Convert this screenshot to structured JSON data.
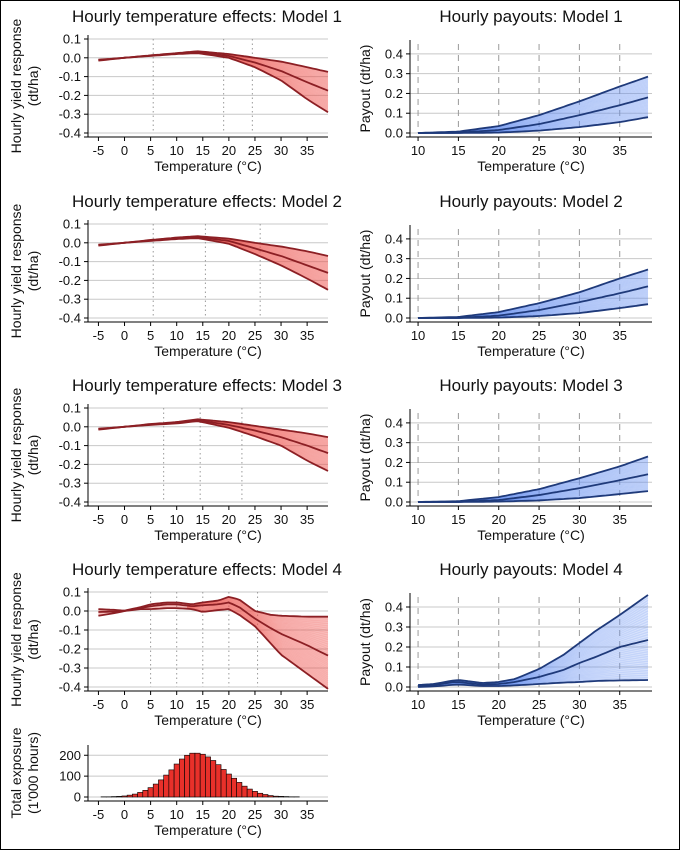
{
  "chart_data": [
    {
      "type": "line",
      "title": "Hourly temperature effects: Model 1",
      "xlabel": "Temperature (°C)",
      "ylabel": "Hourly yield response (dt/ha)",
      "xlim": [
        -7,
        39
      ],
      "ylim": [
        -0.4,
        0.1
      ],
      "xticks": [
        -5,
        0,
        5,
        10,
        15,
        20,
        25,
        30,
        35
      ],
      "yticks": [
        -0.4,
        -0.3,
        -0.2,
        -0.1,
        0.0,
        0.1
      ],
      "ytick_labels": [
        "-0.4",
        "-0.3",
        "-0.2",
        "-0.1",
        "0.0",
        "0.1"
      ],
      "knots": [
        5.5,
        19,
        24.5
      ],
      "x": [
        -5,
        0,
        5,
        10,
        14,
        20,
        25,
        30,
        35,
        39
      ],
      "series": [
        {
          "role": "upper",
          "values": [
            -0.01,
            0.0,
            0.013,
            0.025,
            0.035,
            0.02,
            0.0,
            -0.02,
            -0.05,
            -0.075
          ]
        },
        {
          "role": "median",
          "values": [
            -0.012,
            0.0,
            0.012,
            0.022,
            0.03,
            0.01,
            -0.025,
            -0.07,
            -0.13,
            -0.175
          ]
        },
        {
          "role": "lower",
          "values": [
            -0.015,
            0.0,
            0.01,
            0.02,
            0.025,
            0.0,
            -0.05,
            -0.12,
            -0.22,
            -0.29
          ]
        }
      ],
      "grid": true,
      "color": "#e8302a"
    },
    {
      "type": "line",
      "title": "Hourly payouts: Model 1",
      "xlabel": "Temperature (°C)",
      "ylabel": "Payout (dt/ha)",
      "xlim": [
        9,
        39
      ],
      "ylim": [
        0,
        0.45
      ],
      "xticks": [
        10,
        15,
        20,
        25,
        30,
        35
      ],
      "yticks": [
        0.0,
        0.1,
        0.2,
        0.3,
        0.4
      ],
      "ytick_labels": [
        "0.0",
        "0.1",
        "0.2",
        "0.3",
        "0.4"
      ],
      "x": [
        10,
        15,
        20,
        25,
        30,
        35,
        38.5
      ],
      "series": [
        {
          "role": "upper",
          "values": [
            0,
            0.007,
            0.035,
            0.09,
            0.16,
            0.235,
            0.285
          ]
        },
        {
          "role": "median",
          "values": [
            0,
            0.002,
            0.015,
            0.045,
            0.09,
            0.14,
            0.18
          ]
        },
        {
          "role": "lower",
          "values": [
            0,
            0.0,
            0.002,
            0.012,
            0.03,
            0.055,
            0.08
          ]
        }
      ],
      "grid": true,
      "color": "#2a5fd8"
    },
    {
      "type": "line",
      "title": "Hourly temperature effects: Model 2",
      "xlabel": "Temperature (°C)",
      "ylabel": "Hourly yield response (dt/ha)",
      "xlim": [
        -7,
        39
      ],
      "ylim": [
        -0.4,
        0.1
      ],
      "xticks": [
        -5,
        0,
        5,
        10,
        15,
        20,
        25,
        30,
        35
      ],
      "yticks": [
        -0.4,
        -0.3,
        -0.2,
        -0.1,
        0.0,
        0.1
      ],
      "ytick_labels": [
        "-0.4",
        "-0.3",
        "-0.2",
        "-0.1",
        "0.0",
        "0.1"
      ],
      "knots": [
        5.5,
        15.5,
        26
      ],
      "x": [
        -5,
        0,
        5,
        10,
        14,
        20,
        25,
        30,
        35,
        39
      ],
      "series": [
        {
          "role": "upper",
          "values": [
            -0.01,
            0.0,
            0.015,
            0.028,
            0.035,
            0.022,
            0.0,
            -0.02,
            -0.045,
            -0.07
          ]
        },
        {
          "role": "median",
          "values": [
            -0.012,
            0.0,
            0.013,
            0.025,
            0.03,
            0.01,
            -0.03,
            -0.07,
            -0.12,
            -0.16
          ]
        },
        {
          "role": "lower",
          "values": [
            -0.015,
            0.0,
            0.01,
            0.02,
            0.025,
            -0.005,
            -0.06,
            -0.12,
            -0.19,
            -0.25
          ]
        }
      ],
      "grid": true,
      "color": "#e8302a"
    },
    {
      "type": "line",
      "title": "Hourly payouts: Model 2",
      "xlabel": "Temperature (°C)",
      "ylabel": "Payout (dt/ha)",
      "xlim": [
        9,
        39
      ],
      "ylim": [
        0,
        0.45
      ],
      "xticks": [
        10,
        15,
        20,
        25,
        30,
        35
      ],
      "yticks": [
        0.0,
        0.1,
        0.2,
        0.3,
        0.4
      ],
      "ytick_labels": [
        "0.0",
        "0.1",
        "0.2",
        "0.3",
        "0.4"
      ],
      "x": [
        10,
        15,
        20,
        25,
        30,
        35,
        38.5
      ],
      "series": [
        {
          "role": "upper",
          "values": [
            0,
            0.005,
            0.03,
            0.075,
            0.13,
            0.2,
            0.245
          ]
        },
        {
          "role": "median",
          "values": [
            0,
            0.001,
            0.012,
            0.04,
            0.08,
            0.125,
            0.16
          ]
        },
        {
          "role": "lower",
          "values": [
            0,
            0.0,
            0.002,
            0.01,
            0.025,
            0.05,
            0.07
          ]
        }
      ],
      "grid": true,
      "color": "#2a5fd8"
    },
    {
      "type": "line",
      "title": "Hourly temperature effects: Model 3",
      "xlabel": "Temperature (°C)",
      "ylabel": "Hourly yield response (dt/ha)",
      "xlim": [
        -7,
        39
      ],
      "ylim": [
        -0.4,
        0.1
      ],
      "xticks": [
        -5,
        0,
        5,
        10,
        15,
        20,
        25,
        30,
        35
      ],
      "yticks": [
        -0.4,
        -0.3,
        -0.2,
        -0.1,
        0.0,
        0.1
      ],
      "ytick_labels": [
        "-0.4",
        "-0.3",
        "-0.2",
        "-0.1",
        "0.0",
        "0.1"
      ],
      "knots": [
        7.5,
        14.5,
        22.5
      ],
      "x": [
        -5,
        0,
        5,
        10,
        14,
        20,
        25,
        30,
        35,
        39
      ],
      "series": [
        {
          "role": "upper",
          "values": [
            -0.01,
            0.0,
            0.015,
            0.025,
            0.04,
            0.025,
            0.005,
            -0.015,
            -0.035,
            -0.055
          ]
        },
        {
          "role": "median",
          "values": [
            -0.012,
            0.0,
            0.012,
            0.022,
            0.035,
            0.01,
            -0.02,
            -0.055,
            -0.1,
            -0.14
          ]
        },
        {
          "role": "lower",
          "values": [
            -0.015,
            0.0,
            0.01,
            0.018,
            0.03,
            -0.005,
            -0.05,
            -0.1,
            -0.18,
            -0.235
          ]
        }
      ],
      "grid": true,
      "color": "#e8302a"
    },
    {
      "type": "line",
      "title": "Hourly payouts: Model 3",
      "xlabel": "Temperature (°C)",
      "ylabel": "Payout (dt/ha)",
      "xlim": [
        9,
        39
      ],
      "ylim": [
        0,
        0.45
      ],
      "xticks": [
        10,
        15,
        20,
        25,
        30,
        35
      ],
      "yticks": [
        0.0,
        0.1,
        0.2,
        0.3,
        0.4
      ],
      "ytick_labels": [
        "0.0",
        "0.1",
        "0.2",
        "0.3",
        "0.4"
      ],
      "x": [
        10,
        15,
        20,
        25,
        30,
        35,
        38.5
      ],
      "series": [
        {
          "role": "upper",
          "values": [
            0,
            0.004,
            0.025,
            0.065,
            0.12,
            0.18,
            0.23
          ]
        },
        {
          "role": "median",
          "values": [
            0,
            0.001,
            0.01,
            0.035,
            0.07,
            0.11,
            0.14
          ]
        },
        {
          "role": "lower",
          "values": [
            0,
            0.0,
            0.002,
            0.008,
            0.02,
            0.04,
            0.055
          ]
        }
      ],
      "grid": true,
      "color": "#2a5fd8"
    },
    {
      "type": "line",
      "title": "Hourly temperature effects: Model 4",
      "xlabel": "Temperature (°C)",
      "ylabel": "Hourly yield response (dt/ha)",
      "xlim": [
        -7,
        39
      ],
      "ylim": [
        -0.4,
        0.1
      ],
      "xticks": [
        -5,
        0,
        5,
        10,
        15,
        20,
        25,
        30,
        35
      ],
      "yticks": [
        -0.4,
        -0.3,
        -0.2,
        -0.1,
        0.0,
        0.1
      ],
      "ytick_labels": [
        "-0.4",
        "-0.3",
        "-0.2",
        "-0.1",
        "0.0",
        "0.1"
      ],
      "knots": [
        5,
        10,
        15,
        20,
        25.5
      ],
      "x": [
        -5,
        -2,
        0,
        3,
        5,
        8,
        10,
        13,
        15,
        18,
        20,
        22,
        25,
        28,
        30,
        35,
        39
      ],
      "series": [
        {
          "role": "upper",
          "values": [
            0.01,
            0.006,
            0.002,
            0.02,
            0.035,
            0.045,
            0.045,
            0.035,
            0.045,
            0.055,
            0.075,
            0.06,
            0.0,
            -0.02,
            -0.025,
            -0.03,
            -0.03
          ]
        },
        {
          "role": "median",
          "values": [
            -0.005,
            -0.003,
            0.0,
            0.015,
            0.025,
            0.035,
            0.035,
            0.025,
            0.03,
            0.035,
            0.045,
            0.02,
            -0.04,
            -0.09,
            -0.12,
            -0.18,
            -0.235
          ]
        },
        {
          "role": "lower",
          "values": [
            -0.025,
            -0.012,
            0.0,
            0.01,
            0.01,
            0.015,
            0.015,
            0.01,
            -0.005,
            0.005,
            0.01,
            -0.02,
            -0.08,
            -0.17,
            -0.23,
            -0.33,
            -0.41
          ]
        }
      ],
      "grid": true,
      "color": "#e8302a"
    },
    {
      "type": "line",
      "title": "Hourly payouts: Model 4",
      "xlabel": "Temperature (°C)",
      "ylabel": "Payout (dt/ha)",
      "xlim": [
        9,
        39
      ],
      "ylim": [
        0,
        0.45
      ],
      "xticks": [
        10,
        15,
        20,
        25,
        30,
        35
      ],
      "yticks": [
        0.0,
        0.1,
        0.2,
        0.3,
        0.4
      ],
      "ytick_labels": [
        "0.0",
        "0.1",
        "0.2",
        "0.3",
        "0.4"
      ],
      "x": [
        10,
        12,
        14,
        15,
        16,
        18,
        20,
        22,
        25,
        28,
        30,
        32,
        35,
        38.5
      ],
      "series": [
        {
          "role": "upper",
          "values": [
            0.01,
            0.015,
            0.03,
            0.035,
            0.03,
            0.02,
            0.025,
            0.04,
            0.09,
            0.16,
            0.22,
            0.28,
            0.36,
            0.46
          ]
        },
        {
          "role": "median",
          "values": [
            0.005,
            0.01,
            0.022,
            0.025,
            0.02,
            0.012,
            0.015,
            0.025,
            0.05,
            0.085,
            0.12,
            0.15,
            0.2,
            0.235
          ]
        },
        {
          "role": "lower",
          "values": [
            0.0,
            0.003,
            0.01,
            0.012,
            0.01,
            0.005,
            0.005,
            0.008,
            0.015,
            0.022,
            0.025,
            0.03,
            0.033,
            0.035
          ]
        }
      ],
      "grid": true,
      "color": "#2a5fd8"
    },
    {
      "type": "bar",
      "title": "",
      "xlabel": "Temperature (°C)",
      "ylabel": "Total exposure (1'000 hours)",
      "xlim": [
        -7,
        39
      ],
      "ylim": [
        0,
        230
      ],
      "xticks": [
        -5,
        0,
        5,
        10,
        15,
        20,
        25,
        30,
        35
      ],
      "yticks": [
        0,
        100,
        200
      ],
      "ytick_labels": [
        "0",
        "100",
        "200"
      ],
      "x": [
        -4,
        -3,
        -2,
        -1,
        0,
        1,
        2,
        3,
        4,
        5,
        6,
        7,
        8,
        9,
        10,
        11,
        12,
        13,
        14,
        15,
        16,
        17,
        18,
        19,
        20,
        21,
        22,
        23,
        24,
        25,
        26,
        27,
        28,
        29,
        30,
        31,
        32,
        33,
        34,
        35
      ],
      "values": [
        1,
        1,
        2,
        3,
        5,
        9,
        14,
        22,
        32,
        45,
        62,
        82,
        105,
        130,
        158,
        182,
        200,
        210,
        210,
        205,
        192,
        175,
        155,
        132,
        110,
        90,
        70,
        52,
        38,
        27,
        18,
        12,
        7,
        4,
        3,
        2,
        1,
        1,
        0,
        0
      ],
      "grid": true,
      "color": "#e8302a"
    }
  ]
}
